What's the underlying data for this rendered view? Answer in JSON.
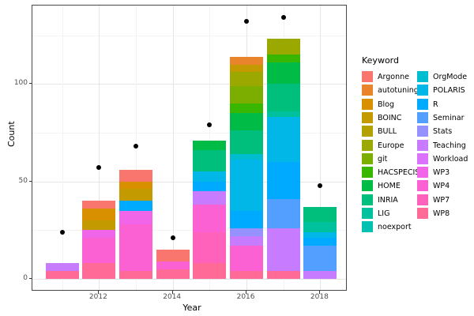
{
  "chart_data": {
    "type": "bar",
    "stacked": true,
    "orientation": "vertical",
    "title": "",
    "xlabel": "Year",
    "ylabel": "Count",
    "legend_title": "Keyword",
    "legend_position": "right",
    "grid": true,
    "x_range": [
      2010.2,
      2018.8
    ],
    "ylim": [
      -7,
      140
    ],
    "yticks": [
      0,
      50,
      100
    ],
    "yticks_minor": [
      25,
      75,
      125
    ],
    "xticks": [
      2012,
      2014,
      2016,
      2018
    ],
    "xticks_minor": [
      2011,
      2013,
      2015,
      2017
    ],
    "keywords": [
      {
        "name": "Argonne",
        "color": "#F8766D"
      },
      {
        "name": "autotuning",
        "color": "#E9842C"
      },
      {
        "name": "Blog",
        "color": "#D89000"
      },
      {
        "name": "BOINC",
        "color": "#C39B00"
      },
      {
        "name": "BULL",
        "color": "#B2A100"
      },
      {
        "name": "Europe",
        "color": "#9AA800"
      },
      {
        "name": "git",
        "color": "#7CAE00"
      },
      {
        "name": "HACSPECIS",
        "color": "#39B600"
      },
      {
        "name": "HOME",
        "color": "#00BB45"
      },
      {
        "name": "INRIA",
        "color": "#00BF7C"
      },
      {
        "name": "LIG",
        "color": "#00C19E"
      },
      {
        "name": "noexport",
        "color": "#00C1B2"
      },
      {
        "name": "OrgMode",
        "color": "#00BDD0"
      },
      {
        "name": "POLARIS",
        "color": "#00B7E8"
      },
      {
        "name": "R",
        "color": "#00AAFF"
      },
      {
        "name": "Seminar",
        "color": "#529FFF"
      },
      {
        "name": "Stats",
        "color": "#9591FF"
      },
      {
        "name": "Teaching",
        "color": "#C77CFF"
      },
      {
        "name": "Workload",
        "color": "#DB72FB"
      },
      {
        "name": "WP3",
        "color": "#F166E8"
      },
      {
        "name": "WP4",
        "color": "#FC61D4"
      },
      {
        "name": "WP7",
        "color": "#FF62BA"
      },
      {
        "name": "WP8",
        "color": "#FF6B96"
      }
    ],
    "bars": [
      {
        "year": 2011,
        "total": 8,
        "segments": [
          {
            "keyword": "Teaching",
            "value": 4
          },
          {
            "keyword": "WP8",
            "value": 4
          }
        ]
      },
      {
        "year": 2012,
        "total": 40,
        "segments": [
          {
            "keyword": "Argonne",
            "value": 4
          },
          {
            "keyword": "Blog",
            "value": 6
          },
          {
            "keyword": "BOINC",
            "value": 5
          },
          {
            "keyword": "WP3",
            "value": 4
          },
          {
            "keyword": "WP4",
            "value": 13
          },
          {
            "keyword": "WP8",
            "value": 8
          }
        ]
      },
      {
        "year": 2013,
        "total": 56,
        "segments": [
          {
            "keyword": "Argonne",
            "value": 6
          },
          {
            "keyword": "Blog",
            "value": 4
          },
          {
            "keyword": "BOINC",
            "value": 6
          },
          {
            "keyword": "R",
            "value": 5
          },
          {
            "keyword": "WP3",
            "value": 7
          },
          {
            "keyword": "WP4",
            "value": 24
          },
          {
            "keyword": "WP8",
            "value": 4
          }
        ]
      },
      {
        "year": 2014,
        "total": 15,
        "segments": [
          {
            "keyword": "Argonne",
            "value": 6
          },
          {
            "keyword": "WP4",
            "value": 4
          },
          {
            "keyword": "WP8",
            "value": 5
          }
        ]
      },
      {
        "year": 2015,
        "total": 71,
        "segments": [
          {
            "keyword": "HOME",
            "value": 5
          },
          {
            "keyword": "INRIA",
            "value": 11
          },
          {
            "keyword": "POLARIS",
            "value": 5
          },
          {
            "keyword": "R",
            "value": 5
          },
          {
            "keyword": "Teaching",
            "value": 7
          },
          {
            "keyword": "WP4",
            "value": 14
          },
          {
            "keyword": "WP7",
            "value": 16
          },
          {
            "keyword": "WP8",
            "value": 8
          }
        ]
      },
      {
        "year": 2016,
        "total": 114,
        "segments": [
          {
            "keyword": "autotuning",
            "value": 4
          },
          {
            "keyword": "BOINC",
            "value": 4
          },
          {
            "keyword": "Europe",
            "value": 7
          },
          {
            "keyword": "git",
            "value": 9
          },
          {
            "keyword": "HACSPECIS",
            "value": 5
          },
          {
            "keyword": "HOME",
            "value": 9
          },
          {
            "keyword": "INRIA",
            "value": 12
          },
          {
            "keyword": "OrgMode",
            "value": 3
          },
          {
            "keyword": "POLARIS",
            "value": 26
          },
          {
            "keyword": "R",
            "value": 9
          },
          {
            "keyword": "Stats",
            "value": 4
          },
          {
            "keyword": "Teaching",
            "value": 5
          },
          {
            "keyword": "WP4",
            "value": 13
          },
          {
            "keyword": "WP8",
            "value": 4
          }
        ]
      },
      {
        "year": 2017,
        "total": 123,
        "segments": [
          {
            "keyword": "Europe",
            "value": 8
          },
          {
            "keyword": "HACSPECIS",
            "value": 4
          },
          {
            "keyword": "HOME",
            "value": 11
          },
          {
            "keyword": "INRIA",
            "value": 14
          },
          {
            "keyword": "LIG",
            "value": 3
          },
          {
            "keyword": "POLARIS",
            "value": 23
          },
          {
            "keyword": "R",
            "value": 19
          },
          {
            "keyword": "Seminar",
            "value": 15
          },
          {
            "keyword": "Teaching",
            "value": 22
          },
          {
            "keyword": "WP8",
            "value": 4
          }
        ]
      },
      {
        "year": 2018,
        "total": 37,
        "segments": [
          {
            "keyword": "INRIA",
            "value": 8
          },
          {
            "keyword": "LIG",
            "value": 5
          },
          {
            "keyword": "POLARIS",
            "value": 3
          },
          {
            "keyword": "R",
            "value": 4
          },
          {
            "keyword": "Seminar",
            "value": 13
          },
          {
            "keyword": "Teaching",
            "value": 4
          }
        ]
      }
    ],
    "points": [
      {
        "year": 2011,
        "count": 24
      },
      {
        "year": 2012,
        "count": 57
      },
      {
        "year": 2013,
        "count": 68
      },
      {
        "year": 2014,
        "count": 21
      },
      {
        "year": 2015,
        "count": 79
      },
      {
        "year": 2016,
        "count": 132
      },
      {
        "year": 2017,
        "count": 134
      },
      {
        "year": 2018,
        "count": 48
      }
    ]
  }
}
